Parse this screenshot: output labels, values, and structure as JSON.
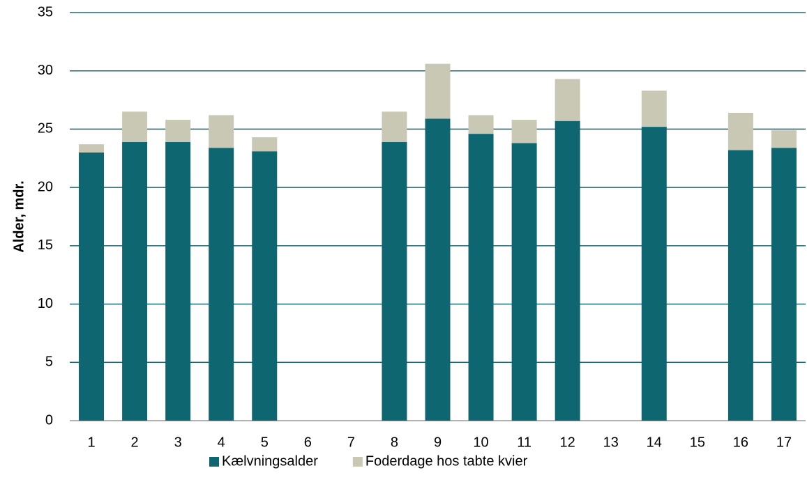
{
  "chart_data": {
    "type": "stacked-bar",
    "y_label": "Alder, mdr.",
    "categories": [
      "1",
      "2",
      "3",
      "4",
      "5",
      "6",
      "7",
      "8",
      "9",
      "10",
      "11",
      "12",
      "13",
      "14",
      "15",
      "16",
      "17"
    ],
    "series": [
      {
        "name": "Kælvningsalder",
        "color": "#0e6670",
        "values": [
          23.0,
          23.9,
          23.9,
          23.4,
          23.1,
          null,
          null,
          23.9,
          25.9,
          24.6,
          23.8,
          25.7,
          null,
          25.2,
          null,
          23.2,
          23.4
        ]
      },
      {
        "name": "Foderdage hos tabte kvier",
        "color": "#c8c8b4",
        "values": [
          0.7,
          2.6,
          1.9,
          2.8,
          1.2,
          null,
          null,
          2.6,
          4.7,
          1.6,
          2.0,
          3.6,
          null,
          3.1,
          null,
          3.2,
          1.5
        ]
      }
    ],
    "ylim": [
      0,
      35
    ],
    "yticks": [
      0,
      5,
      10,
      15,
      20,
      25,
      30,
      35
    ],
    "grid": true,
    "legend": "bottom"
  }
}
